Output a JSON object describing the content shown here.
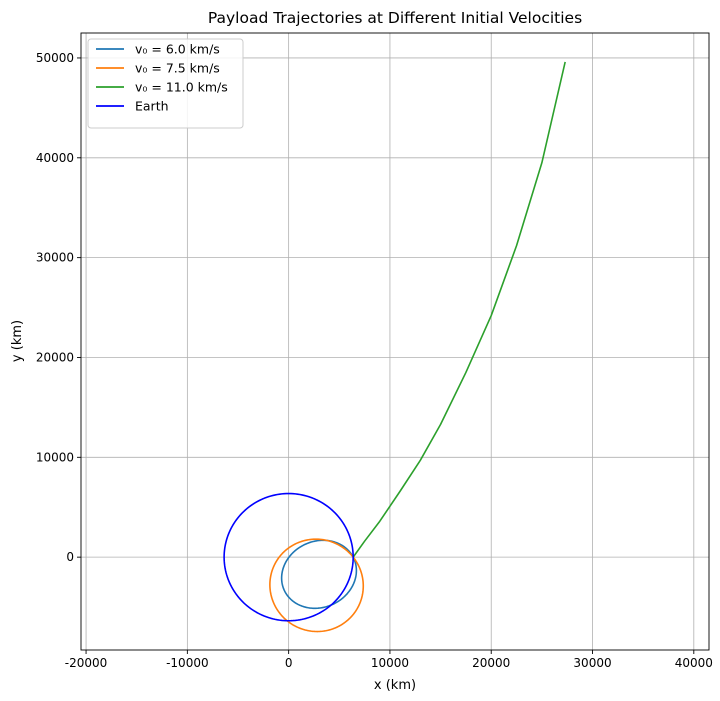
{
  "chart_data": {
    "type": "line",
    "title": "Payload Trajectories at Different Initial Velocities",
    "xlabel": "x (km)",
    "ylabel": "y (km)",
    "xlim": [
      -20500,
      41500
    ],
    "ylim": [
      -9300,
      52500
    ],
    "xticks": [
      -20000,
      -10000,
      0,
      10000,
      20000,
      30000,
      40000
    ],
    "yticks": [
      0,
      10000,
      20000,
      30000,
      40000,
      50000
    ],
    "grid": true,
    "legend_position": "top-left",
    "series": [
      {
        "name": "v₀ = 6.0 km/s",
        "color": "#1f77b4",
        "shape": "ellipse",
        "ellipse": {
          "perigee_x": 6371,
          "apogee_x": -1200,
          "b": 3300,
          "rotation_deg": 27
        }
      },
      {
        "name": "v₀ = 7.5 km/s",
        "color": "#ff7f0e",
        "shape": "ellipse",
        "ellipse": {
          "perigee_x": 6371,
          "apogee_x": -2800,
          "b": 4650,
          "rotation_deg": 38
        }
      },
      {
        "name": "v₀ = 11.0 km/s",
        "color": "#2ca02c",
        "shape": "curve",
        "x": [
          6371,
          7500,
          9000,
          11000,
          13000,
          15000,
          17500,
          20000,
          22500,
          25000,
          27300
        ],
        "y": [
          0,
          1600,
          3600,
          6600,
          9700,
          13300,
          18500,
          24200,
          31200,
          39500,
          49600
        ]
      },
      {
        "name": "Earth",
        "color": "#0000ff",
        "shape": "circle",
        "radius": 6371
      }
    ]
  }
}
